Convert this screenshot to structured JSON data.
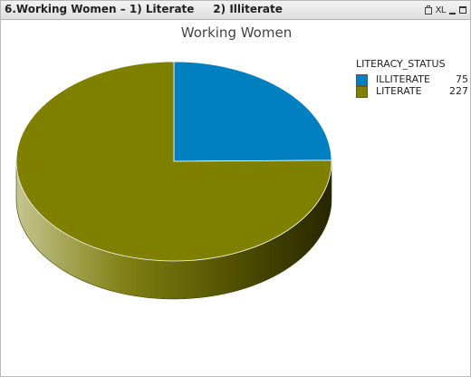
{
  "window": {
    "title": "6.Working Women – 1) Literate     2) Illiterate",
    "tools": [
      "print-icon",
      "xl-export-icon",
      "minimize-icon",
      "maximize-icon"
    ],
    "xl_label": "XL"
  },
  "chart_data": {
    "type": "pie",
    "title": "Working Women",
    "legend_title": "LITERACY_STATUS",
    "legend_placement": "top-right",
    "style": "3d",
    "slices": [
      {
        "label": "ILLITERATE",
        "value": 75,
        "color": "#0080c0"
      },
      {
        "label": "LITERATE",
        "value": 227,
        "color": "#808000"
      }
    ]
  }
}
